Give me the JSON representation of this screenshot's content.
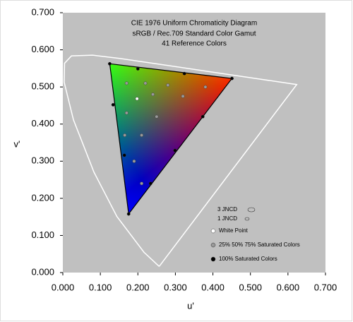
{
  "chart_data": {
    "type": "scatter",
    "title": [
      "CIE 1976 Uniform Chromaticity Diagram",
      "sRGB / Rec.709 Standard Color Gamut",
      "41 Reference Colors"
    ],
    "xlabel": "u'",
    "ylabel": "v'",
    "xlim": [
      0,
      0.7
    ],
    "ylim": [
      0,
      0.7
    ],
    "xticks": [
      {
        "value": 0,
        "label": "0.000"
      },
      {
        "value": 0.1,
        "label": "0.100"
      },
      {
        "value": 0.2,
        "label": "0.200"
      },
      {
        "value": 0.3,
        "label": "0.300"
      },
      {
        "value": 0.4,
        "label": "0.400"
      },
      {
        "value": 0.5,
        "label": "0.500"
      },
      {
        "value": 0.6,
        "label": "0.600"
      },
      {
        "value": 0.7,
        "label": "0.700"
      }
    ],
    "yticks": [
      {
        "value": 0,
        "label": "0.000"
      },
      {
        "value": 0.1,
        "label": "0.100"
      },
      {
        "value": 0.2,
        "label": "0.200"
      },
      {
        "value": 0.3,
        "label": "0.300"
      },
      {
        "value": 0.4,
        "label": "0.400"
      },
      {
        "value": 0.5,
        "label": "0.500"
      },
      {
        "value": 0.6,
        "label": "0.600"
      },
      {
        "value": 0.7,
        "label": "0.700"
      }
    ],
    "spectral_locus": {
      "color": "#ffffff",
      "x": [
        0.2568,
        0.2161,
        0.1441,
        0.0828,
        0.0282,
        0.0035,
        0.0046,
        0.0231,
        0.0792,
        0.1531,
        0.2623,
        0.4035,
        0.5203,
        0.6234,
        0.2568
      ],
      "y": [
        0.0165,
        0.0549,
        0.151,
        0.2708,
        0.4117,
        0.513,
        0.5638,
        0.5837,
        0.5857,
        0.5766,
        0.5605,
        0.5393,
        0.5219,
        0.5065,
        0.0165
      ]
    },
    "annotations": [
      "3 JNCD",
      "1 JNCD"
    ],
    "series": [
      {
        "name": "White Point",
        "color": "#ffffff",
        "x": [
          0.1978
        ],
        "y": [
          0.4683
        ]
      },
      {
        "name": "25% 50% 75% Saturated Colors",
        "color": "#999999",
        "x": [
          0.17,
          0.22,
          0.28,
          0.17,
          0.165,
          0.21,
          0.25,
          0.19,
          0.21,
          0.32,
          0.38,
          0.24
        ],
        "y": [
          0.51,
          0.51,
          0.505,
          0.43,
          0.37,
          0.37,
          0.42,
          0.3,
          0.24,
          0.475,
          0.5,
          0.48
        ]
      },
      {
        "name": "100% Saturated Colors",
        "color": "#000000",
        "x": [
          0.4507,
          0.125,
          0.1754,
          0.134,
          0.164,
          0.234,
          0.299,
          0.373,
          0.2,
          0.324
        ],
        "y": [
          0.5229,
          0.5625,
          0.1579,
          0.452,
          0.316,
          0.24,
          0.329,
          0.42,
          0.549,
          0.536
        ]
      }
    ]
  }
}
